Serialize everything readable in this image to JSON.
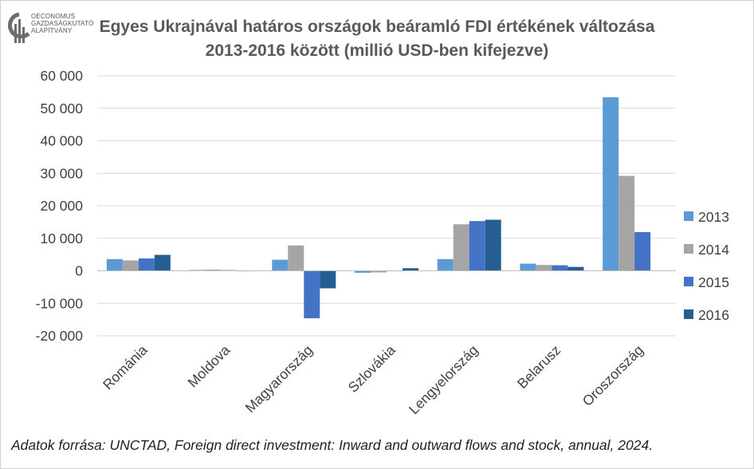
{
  "logo": {
    "line1": "OECONOMUS",
    "line2": "GAZDASÁGKUTATÓ",
    "line3": "ALAPÍTVÁNY"
  },
  "title_line1": "Egyes Ukrajnával határos országok beáramló FDI értékének változása",
  "title_line2": "2013-2016 között (millió USD-ben kifejezve)",
  "source": "Adatok forrása: UNCTAD, Foreign direct investment: Inward and outward flows and stock, annual, 2024.",
  "chart_data": {
    "type": "bar",
    "categories": [
      "Románia",
      "Moldova",
      "Magyarország",
      "Szlovákia",
      "Lengyelország",
      "Belarusz",
      "Oroszország"
    ],
    "series": [
      {
        "name": "2013",
        "color": "#5b9bd5",
        "values": [
          3600,
          250,
          3400,
          -600,
          3600,
          2200,
          53400
        ]
      },
      {
        "name": "2014",
        "color": "#a5a5a5",
        "values": [
          3200,
          350,
          7800,
          -500,
          14300,
          1800,
          29200
        ]
      },
      {
        "name": "2015",
        "color": "#4472c4",
        "values": [
          3800,
          200,
          -14600,
          100,
          15300,
          1700,
          11900
        ]
      },
      {
        "name": "2016",
        "color": "#255e91",
        "values": [
          4900,
          100,
          -5400,
          800,
          15700,
          1200,
          0
        ]
      }
    ],
    "yticks": [
      "60 000",
      "50 000",
      "40 000",
      "30 000",
      "20 000",
      "10 000",
      "0",
      "-10 000",
      "-20 000"
    ],
    "ytick_values": [
      60000,
      50000,
      40000,
      30000,
      20000,
      10000,
      0,
      -10000,
      -20000
    ],
    "ylim": [
      -20000,
      60000
    ],
    "grid": true,
    "legend_position": "right",
    "xlabel": "",
    "ylabel": ""
  }
}
